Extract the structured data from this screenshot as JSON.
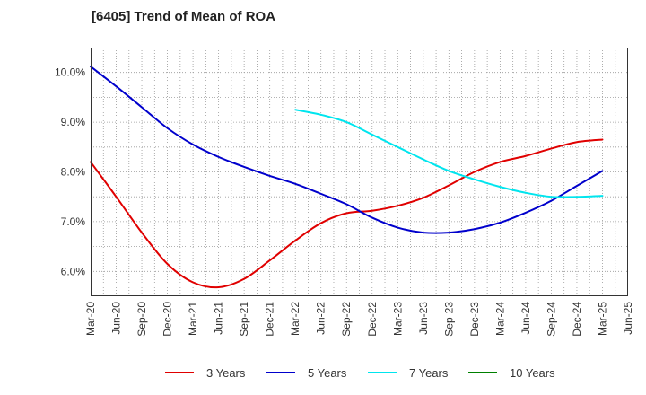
{
  "chart_data": {
    "type": "line",
    "title": "[6405]  Trend of Mean of ROA",
    "xlabel": "",
    "ylabel": "",
    "x": [
      "Mar-20",
      "Jun-20",
      "Sep-20",
      "Dec-20",
      "Mar-21",
      "Jun-21",
      "Sep-21",
      "Dec-21",
      "Mar-22",
      "Jun-22",
      "Sep-22",
      "Dec-22",
      "Mar-23",
      "Jun-23",
      "Sep-23",
      "Dec-23",
      "Mar-24",
      "Jun-24",
      "Sep-24",
      "Dec-24",
      "Mar-25",
      "Jun-25"
    ],
    "y_ticks": [
      "6.0%",
      "7.0%",
      "8.0%",
      "9.0%",
      "10.0%"
    ],
    "y_tick_values": [
      6.0,
      7.0,
      8.0,
      9.0,
      10.0
    ],
    "ylim": [
      5.5,
      10.5
    ],
    "grid": true,
    "legend_position": "bottom",
    "series": [
      {
        "name": "3 Years",
        "color": "#e00000",
        "values": [
          8.2,
          7.5,
          6.78,
          6.15,
          5.78,
          5.68,
          5.85,
          6.22,
          6.62,
          6.97,
          7.17,
          7.22,
          7.32,
          7.48,
          7.73,
          8.0,
          8.2,
          8.32,
          8.47,
          8.6,
          8.65,
          null
        ]
      },
      {
        "name": "5 Years",
        "color": "#0000cc",
        "values": [
          10.12,
          9.72,
          9.3,
          8.88,
          8.55,
          8.3,
          8.1,
          7.92,
          7.76,
          7.56,
          7.35,
          7.08,
          6.88,
          6.78,
          6.78,
          6.85,
          6.98,
          7.18,
          7.42,
          7.72,
          8.02,
          null
        ]
      },
      {
        "name": "7 Years",
        "color": "#00e5ee",
        "values": [
          null,
          null,
          null,
          null,
          null,
          null,
          null,
          null,
          9.25,
          9.15,
          9.0,
          8.75,
          8.5,
          8.25,
          8.02,
          7.85,
          7.7,
          7.58,
          7.5,
          7.5,
          7.52,
          null
        ]
      },
      {
        "name": "10 Years",
        "color": "#008000",
        "values": [
          null,
          null,
          null,
          null,
          null,
          null,
          null,
          null,
          null,
          null,
          null,
          null,
          null,
          null,
          null,
          null,
          null,
          null,
          null,
          null,
          null,
          null
        ]
      }
    ]
  }
}
